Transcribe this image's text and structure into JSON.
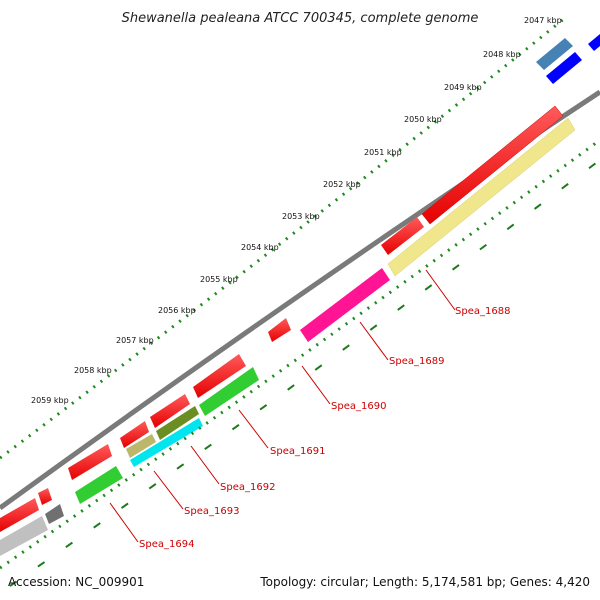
{
  "title": "Shewanella pealeana ATCC 700345, complete genome",
  "accession_text": "Accession: NC_009901",
  "summary_text": "Topology: circular; Length: 5,174,581 bp; Genes: 4,420",
  "colors": {
    "backbone": "#808080",
    "tick_dots": "#1f8a1f",
    "label": "#cc0000",
    "cds_forward": "#ff0000",
    "cds_reverse_a": "#f0e68c",
    "cds_reverse_b": "#ff1493",
    "cds_reverse_c": "#32cd32",
    "cds_reverse_d": "#00e5ee",
    "cds_reverse_e": "#6b8e23",
    "cds_reverse_f": "#c0c0c0",
    "top_blue": "#0000ff",
    "top_steel": "#4682b4"
  },
  "ticks": [
    {
      "label": "2047 kbp"
    },
    {
      "label": "2048 kbp"
    },
    {
      "label": "2049 kbp"
    },
    {
      "label": "2050 kbp"
    },
    {
      "label": "2051 kbp"
    },
    {
      "label": "2052 kbp"
    },
    {
      "label": "2053 kbp"
    },
    {
      "label": "2054 kbp"
    },
    {
      "label": "2055 kbp"
    },
    {
      "label": "2056 kbp"
    },
    {
      "label": "2057 kbp"
    },
    {
      "label": "2058 kbp"
    },
    {
      "label": "2059 kbp"
    }
  ],
  "gene_labels": [
    {
      "name": "Spea_1688"
    },
    {
      "name": "Spea_1689"
    },
    {
      "name": "Spea_1690"
    },
    {
      "name": "Spea_1691"
    },
    {
      "name": "Spea_1692"
    },
    {
      "name": "Spea_1693"
    },
    {
      "name": "Spea_1694"
    }
  ]
}
